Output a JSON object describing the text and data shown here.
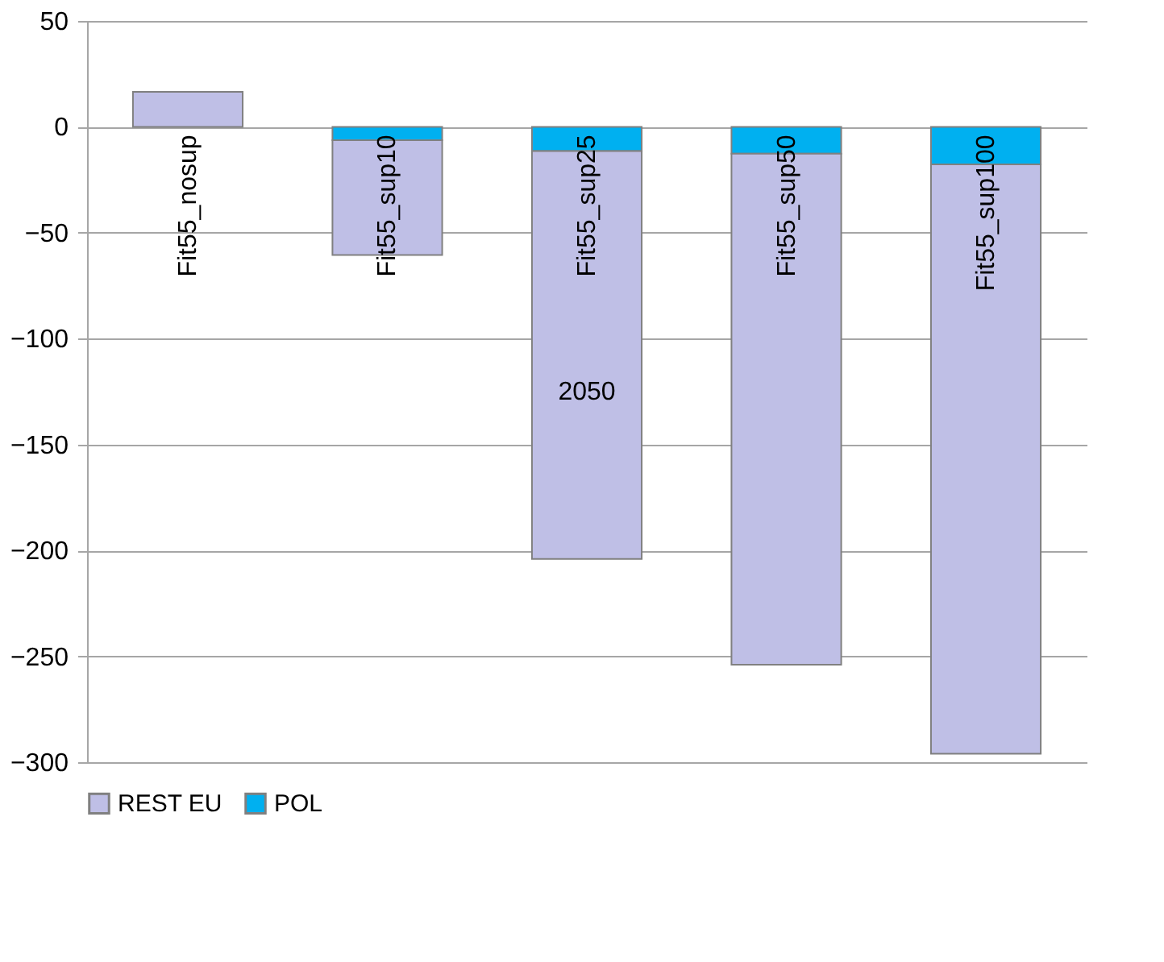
{
  "chart_data": {
    "type": "bar",
    "stacked": true,
    "categories": [
      "Fit55_nosup",
      "Fit55_sup10",
      "Fit55_sup25",
      "Fit55_sup50",
      "Fit55_sup100"
    ],
    "series": [
      {
        "name": "POL",
        "color": "#00b0f0",
        "values": [
          null,
          -6.3,
          -11.4,
          -12.7,
          -17.7
        ]
      },
      {
        "name": "REST EU",
        "color": "#bfbfe6",
        "values": [
          16.5,
          -54.2,
          -192.6,
          -241.3,
          -278.3
        ]
      }
    ],
    "ylim": [
      -300,
      50
    ],
    "yticks": [
      -300,
      -250,
      -200,
      -150,
      -100,
      -50,
      0,
      50
    ],
    "grid": "y",
    "legend": "bottom",
    "annotations": [
      "2050"
    ]
  }
}
